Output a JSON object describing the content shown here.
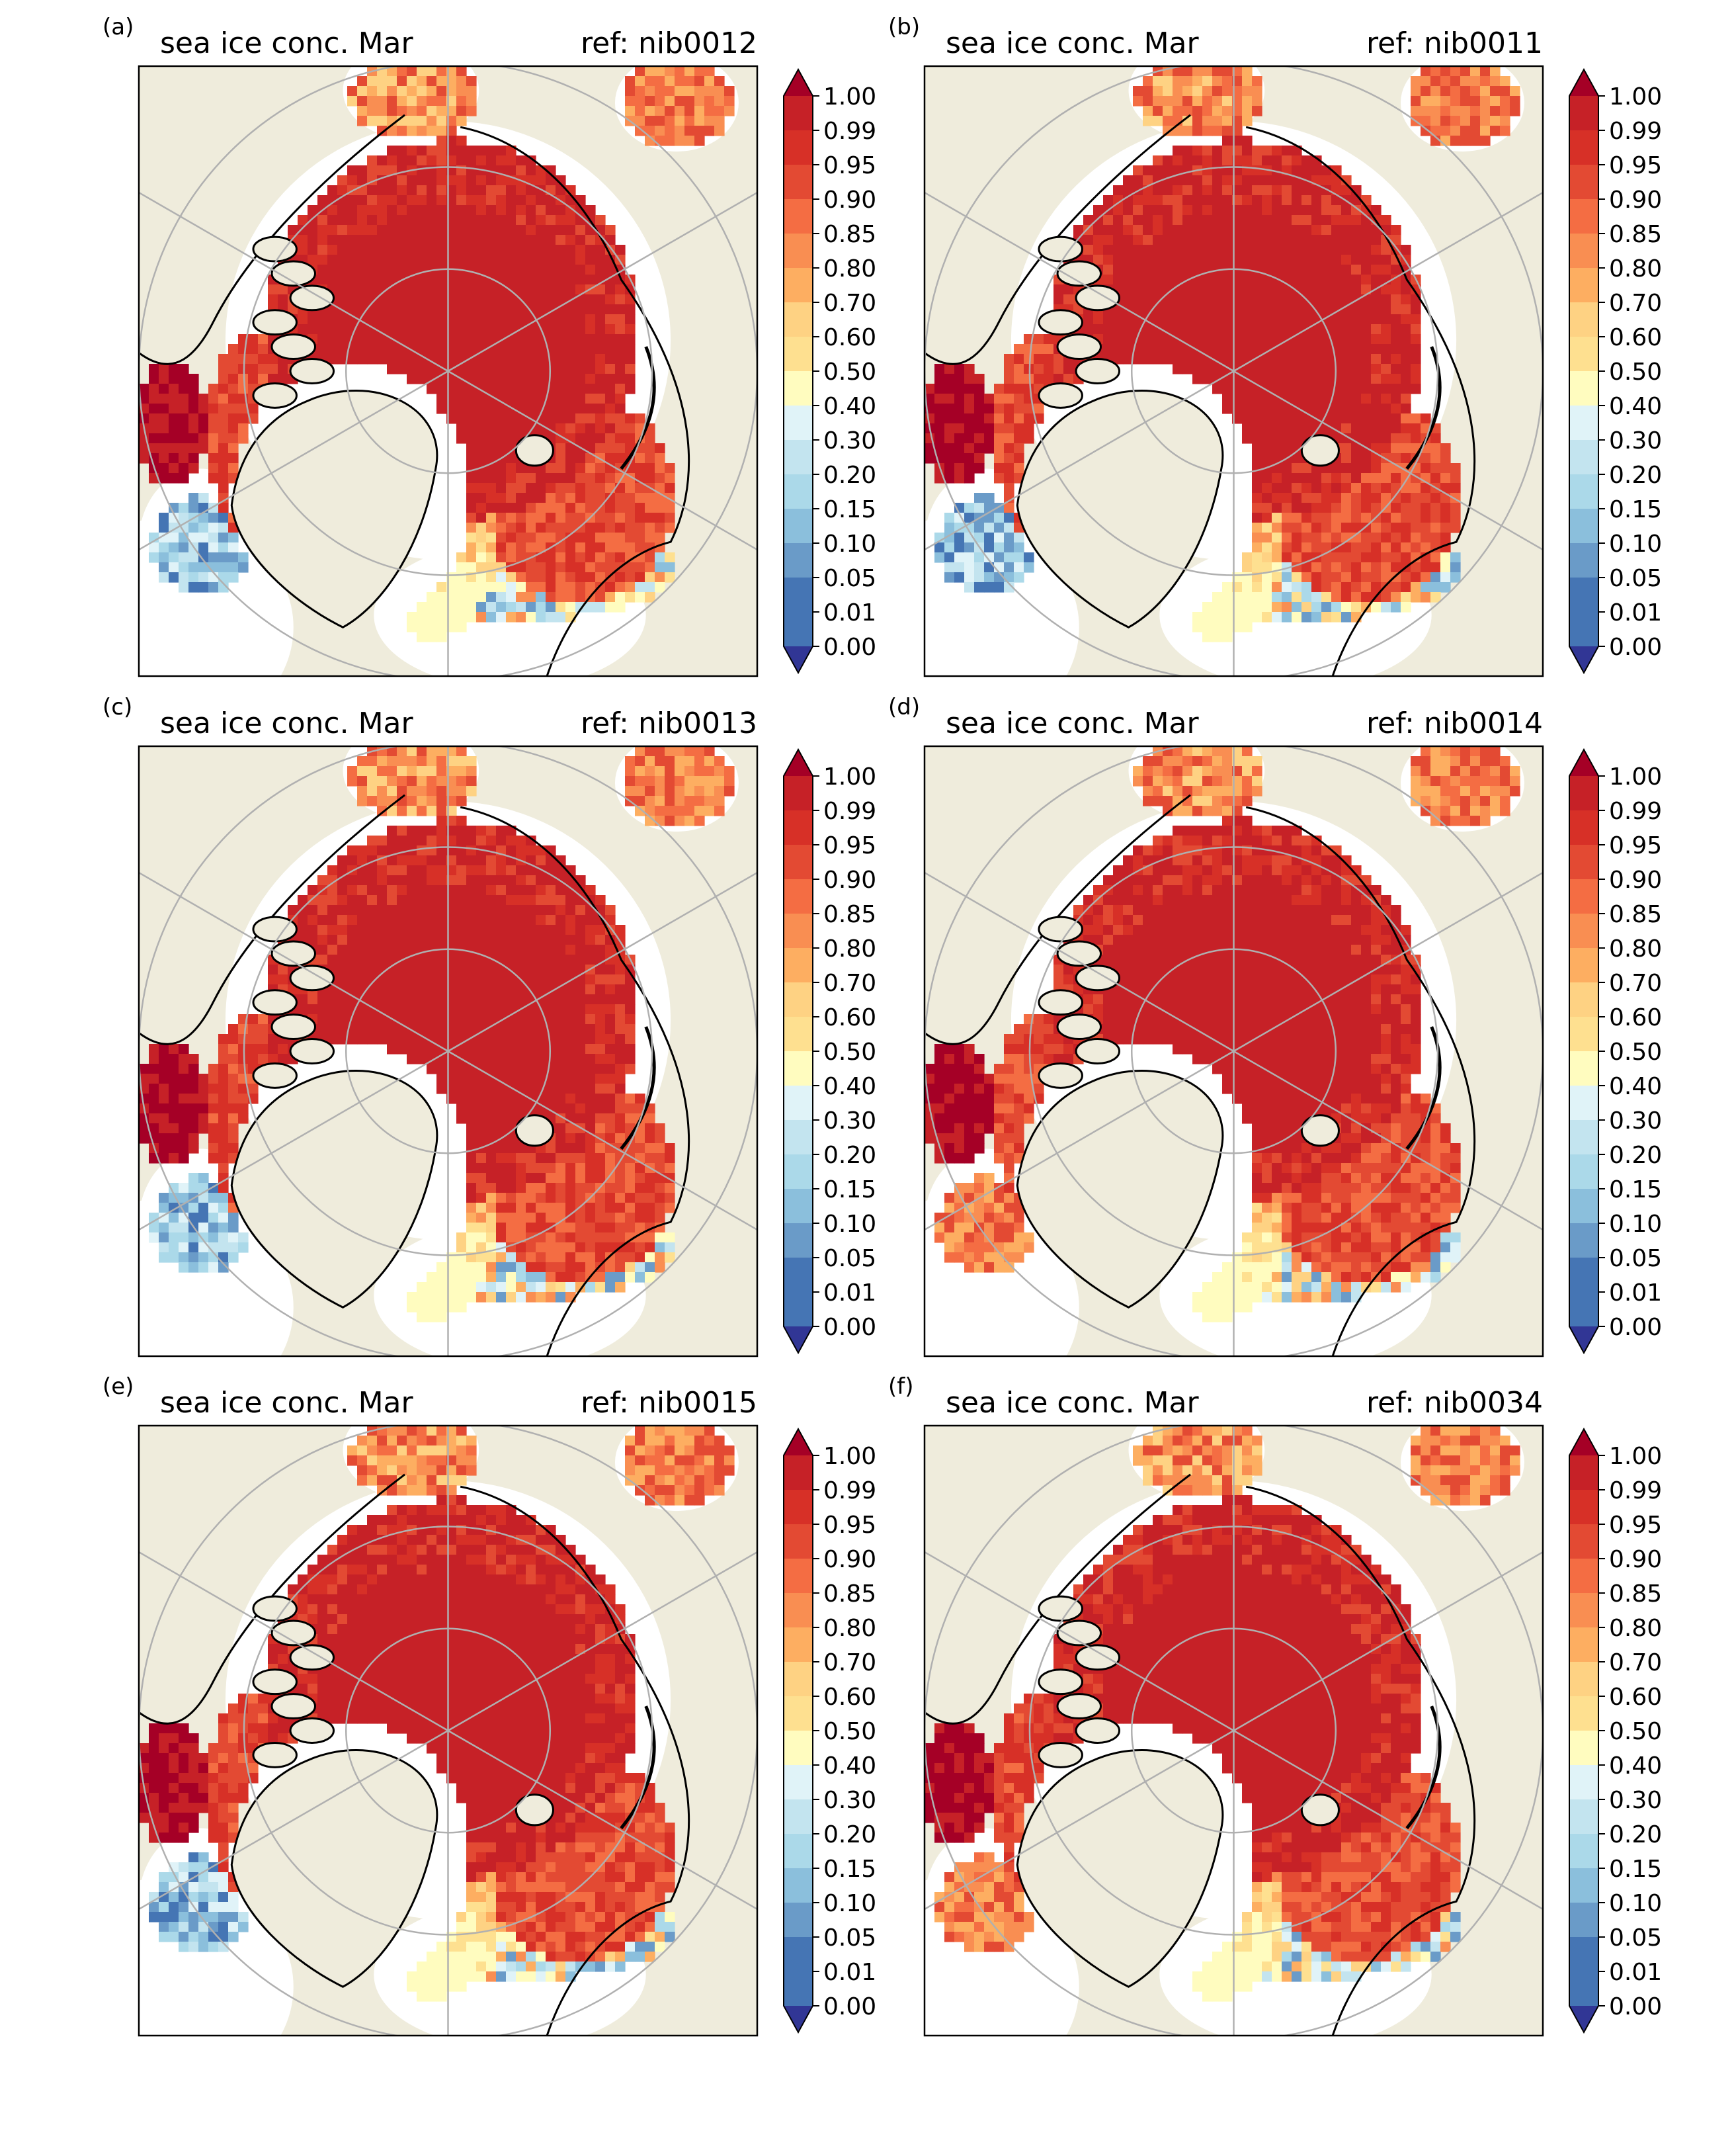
{
  "figure": {
    "panels": [
      {
        "letter": "(a)",
        "title": "sea ice conc. Mar",
        "ref": "ref: nib0012",
        "variant": 0
      },
      {
        "letter": "(b)",
        "title": "sea ice conc. Mar",
        "ref": "ref: nib0011",
        "variant": 1
      },
      {
        "letter": "(c)",
        "title": "sea ice conc. Mar",
        "ref": "ref: nib0013",
        "variant": 2
      },
      {
        "letter": "(d)",
        "title": "sea ice conc. Mar",
        "ref": "ref: nib0014",
        "variant": 3
      },
      {
        "letter": "(e)",
        "title": "sea ice conc. Mar",
        "ref": "ref: nib0015",
        "variant": 4
      },
      {
        "letter": "(f)",
        "title": "sea ice conc. Mar",
        "ref": "ref: nib0034",
        "variant": 5
      }
    ],
    "colorbar": {
      "levels": [
        "1.00",
        "0.99",
        "0.95",
        "0.90",
        "0.85",
        "0.80",
        "0.70",
        "0.60",
        "0.50",
        "0.40",
        "0.30",
        "0.20",
        "0.15",
        "0.10",
        "0.05",
        "0.01",
        "0.00"
      ],
      "colors": [
        "#a50026",
        "#c62127",
        "#d73027",
        "#e34a33",
        "#f46d43",
        "#f98e52",
        "#fdae61",
        "#fed283",
        "#fee090",
        "#fffcbf",
        "#e0f3f8",
        "#c3e4ef",
        "#abd9e9",
        "#8bbfdc",
        "#6a9bc8",
        "#4575b4",
        "#313695"
      ],
      "extend": "both"
    },
    "map_colors": {
      "land": "#efecdc",
      "open_water": "#ffffff",
      "coastline": "#000000",
      "gridline": "#b0b0b0",
      "frame": "#000000"
    },
    "projection": "north-polar-stereographic"
  }
}
